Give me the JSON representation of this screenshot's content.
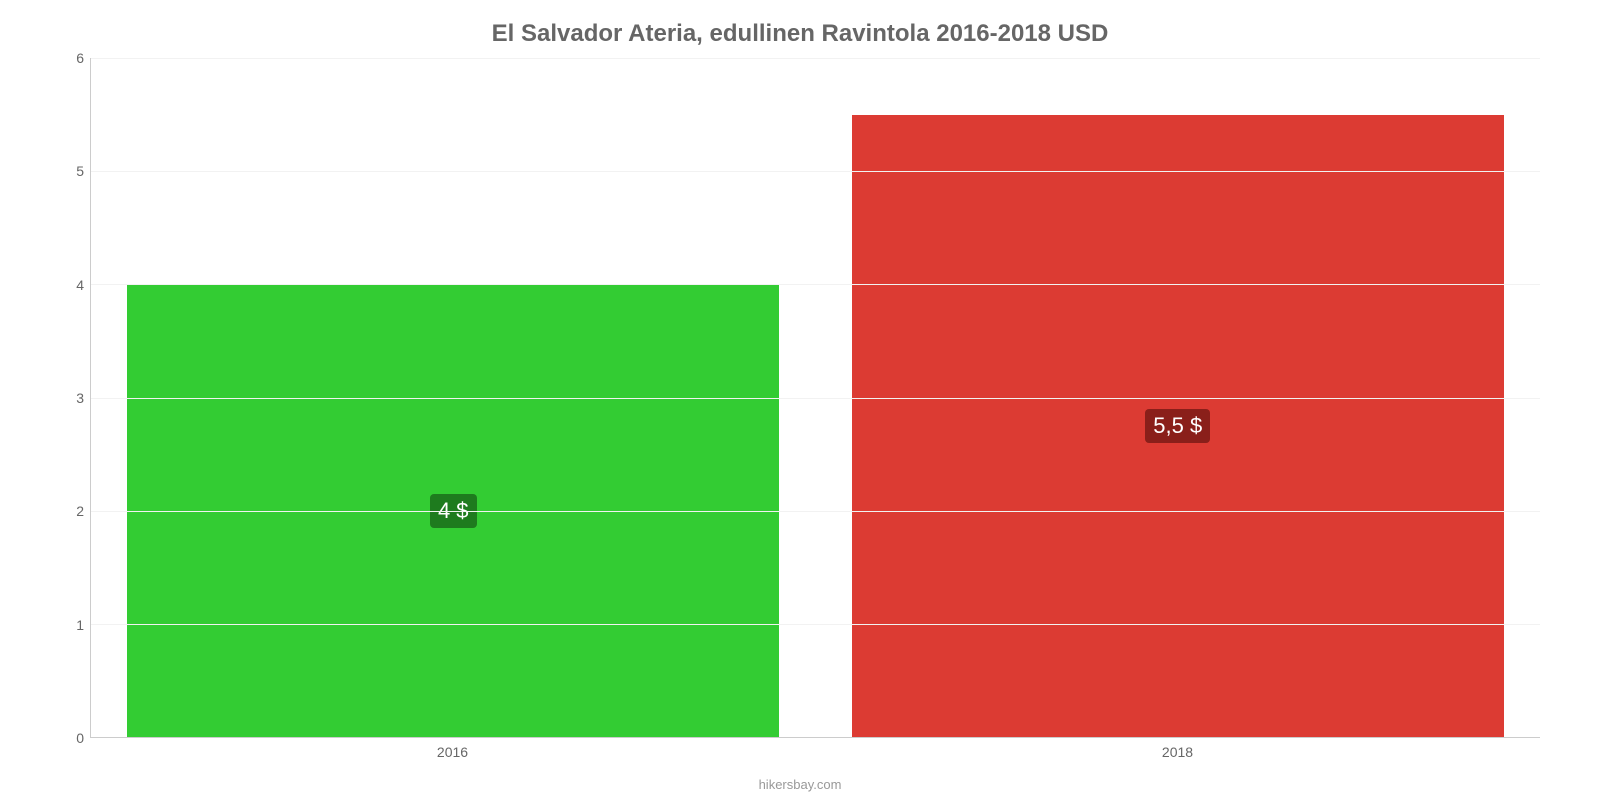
{
  "chart": {
    "type": "bar",
    "title": "El Salvador Ateria, edullinen Ravintola 2016-2018 USD",
    "title_color": "#666666",
    "title_fontsize": 24,
    "categories": [
      "2016",
      "2018"
    ],
    "values": [
      4,
      5.5
    ],
    "value_labels": [
      "4 $",
      "5,5 $"
    ],
    "bar_colors": [
      "#33cc33",
      "#dc3b33"
    ],
    "label_badge_colors": [
      "#1e7b1e",
      "#8a1f1a"
    ],
    "label_text_color": "#ffffff",
    "label_fontsize": 22,
    "ylim": [
      0,
      6
    ],
    "ytick_step": 1,
    "y_ticks": [
      0,
      1,
      2,
      3,
      4,
      5,
      6
    ],
    "background_color": "#ffffff",
    "grid_color": "#f2f2f2",
    "axis_line_color": "#cccccc",
    "tick_label_color": "#666666",
    "tick_fontsize": 14,
    "bar_width_pct": 90,
    "credit": "hikersbay.com",
    "credit_color": "#999999",
    "credit_fontsize": 13
  }
}
